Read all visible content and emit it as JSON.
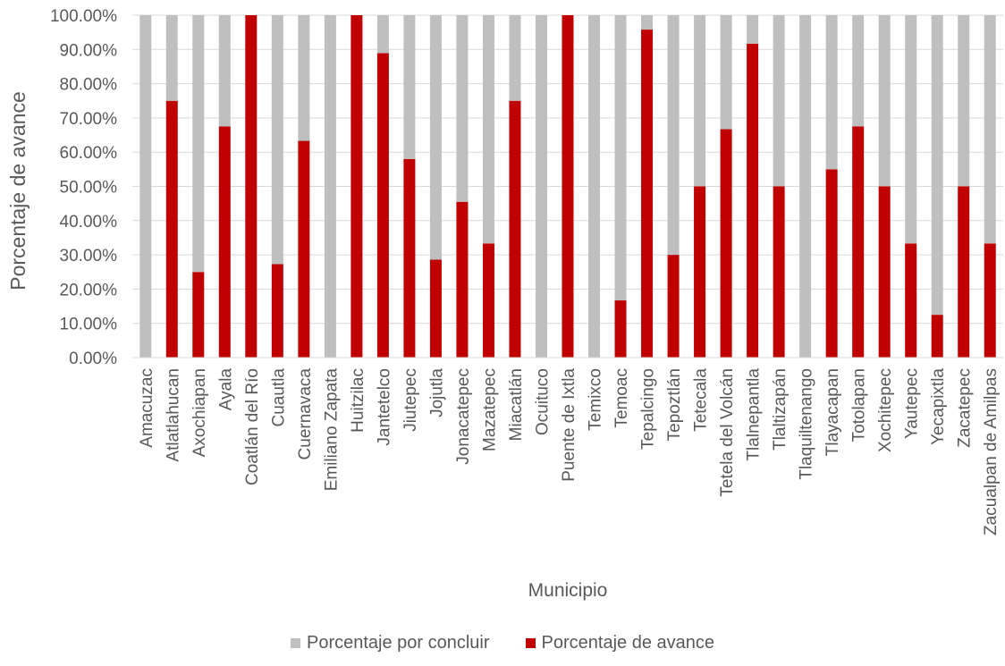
{
  "chart_data": {
    "type": "bar",
    "stacked": true,
    "xlabel": "Municipio",
    "ylabel": "Porcentaje de avance",
    "ylim": [
      0,
      100
    ],
    "ytick_step": 10,
    "ytick_format": "percent_2dp",
    "grid": true,
    "legend_position": "bottom",
    "categories": [
      "Amacuzac",
      "Atlatlahucan",
      "Axochiapan",
      "Ayala",
      "Coatlán del Río",
      "Cuautla",
      "Cuernavaca",
      "Emiliano Zapata",
      "Huitzilac",
      "Jantetelco",
      "Jiutepec",
      "Jojutla",
      "Jonacatepec",
      "Mazatepec",
      "Miacatlán",
      "Ocuituco",
      "Puente de Ixtla",
      "Temixco",
      "Temoac",
      "Tepalcingo",
      "Tepoztlán",
      "Tetecala",
      "Tetela del Volcán",
      "Tlalnepantla",
      "Tlaltizapán",
      "Tlaquiltenango",
      "Tlayacapan",
      "Totolapan",
      "Xochitepec",
      "Yautepec",
      "Yecapixtla",
      "Zacatepec",
      "Zacualpan de Amilpas"
    ],
    "series": [
      {
        "name": "Porcentaje de avance",
        "color": "#c00000",
        "values": [
          0,
          75,
          25,
          67.5,
          100,
          27.3,
          63.3,
          0,
          100,
          88.9,
          58,
          28.6,
          45.5,
          33.3,
          75,
          0,
          100,
          0,
          16.7,
          95.8,
          30,
          50,
          66.7,
          91.7,
          50,
          0,
          55,
          67.5,
          50,
          33.3,
          12.5,
          50,
          33.3
        ]
      },
      {
        "name": "Porcentaje por concluir",
        "color": "#bfbfbf",
        "values": [
          100,
          25,
          75,
          32.5,
          0,
          72.7,
          36.7,
          100,
          0,
          11.1,
          42,
          71.4,
          54.5,
          66.7,
          25,
          100,
          0,
          100,
          83.3,
          4.2,
          70,
          50,
          33.3,
          8.3,
          50,
          100,
          45,
          32.5,
          50,
          66.7,
          87.5,
          50,
          66.7
        ]
      }
    ],
    "legend": [
      {
        "label": "Porcentaje por concluir",
        "color": "#bfbfbf"
      },
      {
        "label": "Porcentaje de avance",
        "color": "#c00000"
      }
    ]
  }
}
